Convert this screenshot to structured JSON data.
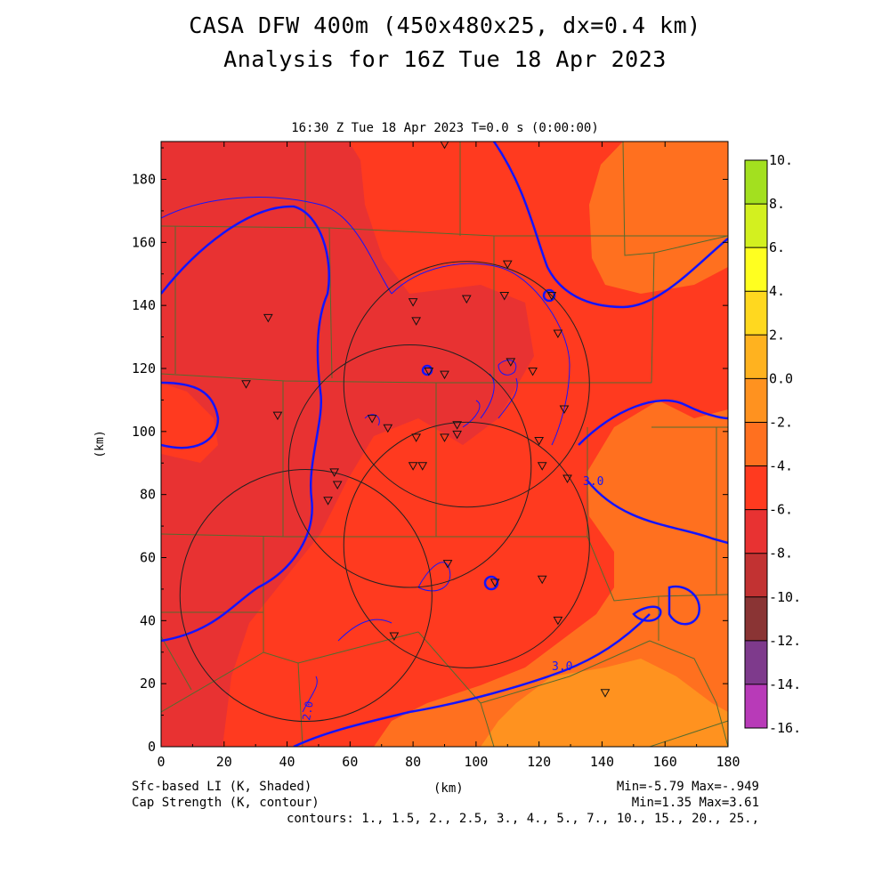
{
  "title_line1": "CASA DFW 400m (450x480x25, dx=0.4 km)",
  "title_line2": "Analysis for 16Z Tue 18 Apr 2023",
  "subtitle": "16:30 Z Tue 18 Apr 2023    T=0.0 s (0:00:00)",
  "footer": {
    "shaded_label": "Sfc-based LI (K, Shaded)",
    "contour_label": "Cap Strength (K, contour)",
    "xunits": "(km)",
    "shaded_minmax": "Min=-5.79 Max=-.949",
    "contour_minmax": "Min=1.35 Max=3.61",
    "contours": "contours: 1., 1.5, 2., 2.5, 3., 4., 5., 7., 10., 15., 20., 25.,"
  },
  "chart_data": {
    "type": "heatmap",
    "xlabel": "(km)",
    "ylabel": "(km)",
    "xlim": [
      0,
      180
    ],
    "ylim": [
      0,
      192
    ],
    "xticks": [
      "0",
      "20",
      "40",
      "60",
      "80",
      "100",
      "120",
      "140",
      "160",
      "180"
    ],
    "yticks": [
      "0",
      "20",
      "40",
      "60",
      "80",
      "100",
      "120",
      "140",
      "160",
      "180"
    ],
    "colorbar": {
      "labels": [
        "10.",
        "8.",
        "6.",
        "4.",
        "2.",
        "0.0",
        "-2.",
        "-4.",
        "-6.",
        "-8.",
        "-10.",
        "-12.",
        "-14.",
        "-16."
      ],
      "colors": [
        "#a3e01f",
        "#d3f01f",
        "#ffff20",
        "#ffd81f",
        "#ffb21f",
        "#ff921f",
        "#ff701f",
        "#ff3a1f",
        "#e83232",
        "#c23232",
        "#8a3434",
        "#7e3a8c",
        "#b83ab8",
        "#d64ae0"
      ]
    },
    "contour_labels": [
      "3.0",
      "3.0",
      "2.0"
    ],
    "shaded_min": -5.79,
    "shaded_max": -0.949,
    "contour_min": 1.35,
    "contour_max": 3.61,
    "contour_levels": [
      1,
      1.5,
      2,
      2.5,
      3,
      4,
      5,
      7,
      10,
      15,
      20,
      25
    ],
    "radar_circles": [
      {
        "x": 97,
        "y": 115,
        "r": 39
      },
      {
        "x": 79,
        "y": 89,
        "r": 38.5
      },
      {
        "x": 97,
        "y": 64,
        "r": 39
      },
      {
        "x": 46,
        "y": 48,
        "r": 40
      }
    ],
    "stations": [
      [
        90,
        191
      ],
      [
        110,
        153
      ],
      [
        124,
        143
      ],
      [
        80,
        141
      ],
      [
        97,
        142
      ],
      [
        109,
        143
      ],
      [
        81,
        135
      ],
      [
        34,
        136
      ],
      [
        126,
        131
      ],
      [
        27,
        115
      ],
      [
        85,
        119
      ],
      [
        90,
        118
      ],
      [
        111,
        122
      ],
      [
        118,
        119
      ],
      [
        37,
        105
      ],
      [
        67,
        104
      ],
      [
        72,
        101
      ],
      [
        94,
        102
      ],
      [
        128,
        107
      ],
      [
        81,
        98
      ],
      [
        90,
        98
      ],
      [
        94,
        99
      ],
      [
        120,
        97
      ],
      [
        83,
        89
      ],
      [
        55,
        87
      ],
      [
        56,
        83
      ],
      [
        53,
        78
      ],
      [
        121,
        89
      ],
      [
        80,
        89
      ],
      [
        129,
        85
      ],
      [
        91,
        58
      ],
      [
        106,
        52
      ],
      [
        121,
        53
      ],
      [
        126,
        40
      ],
      [
        74,
        35
      ],
      [
        141,
        17
      ]
    ]
  }
}
